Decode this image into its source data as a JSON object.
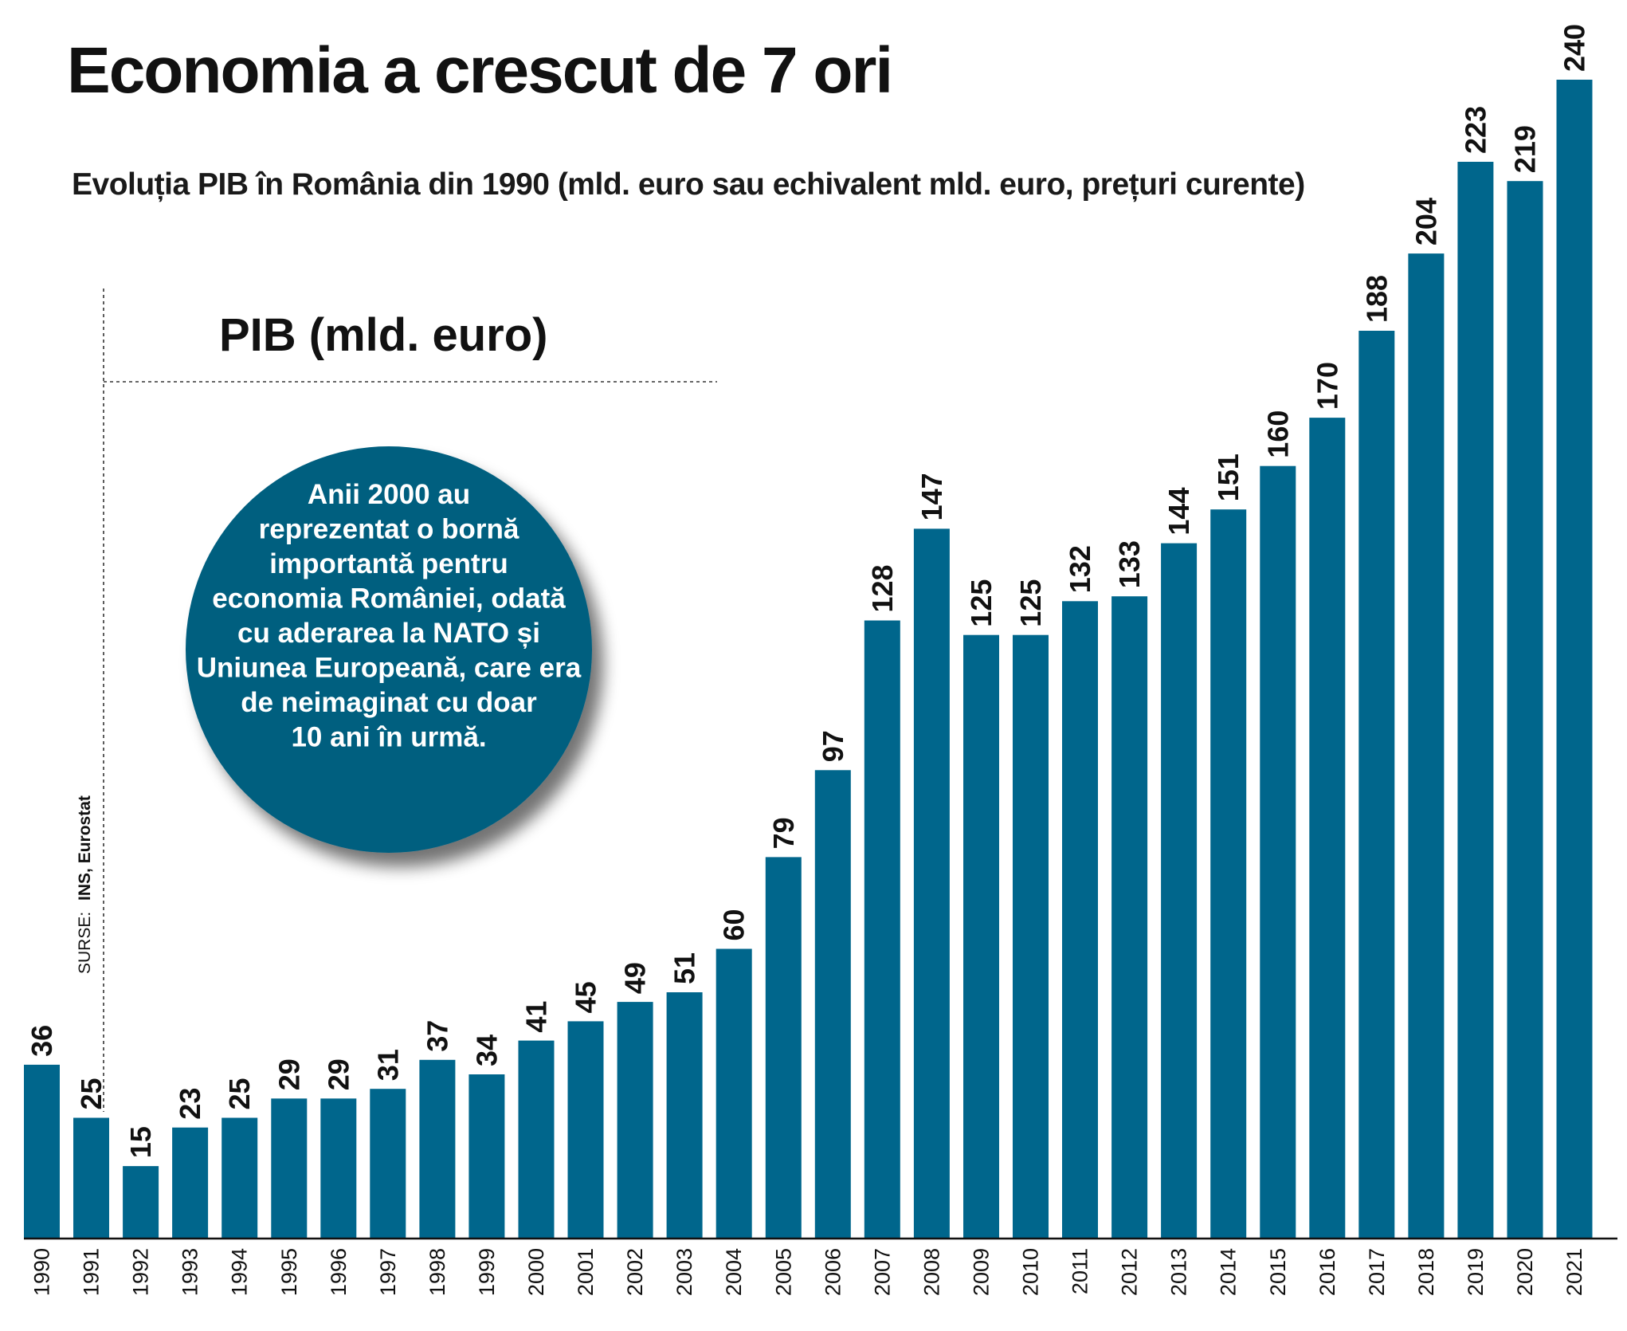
{
  "title": "Economia a crescut de 7 ori",
  "subtitle": "Evoluția PIB în România din 1990 (mld. euro sau echivalent mld. euro, prețuri curente)",
  "series_label": "PIB (mld. euro)",
  "annotation": {
    "lines": [
      "Anii 2000 au",
      "reprezentat o bornă",
      "importantă pentru",
      "economia României, odată",
      "cu aderarea la NATO și",
      "Uniunea Europeană, care era",
      "de neimaginat cu doar",
      "10 ani în urmă."
    ]
  },
  "source": {
    "prefix": "SURSE:",
    "names": "INS, Eurostat"
  },
  "colors": {
    "bar": "#00668c",
    "bubble": "#005f7f",
    "text": "#111111"
  },
  "chart_data": {
    "type": "bar",
    "categories": [
      "1990",
      "1991",
      "1992",
      "1993",
      "1994",
      "1995",
      "1996",
      "1997",
      "1998",
      "1999",
      "2000",
      "2001",
      "2002",
      "2003",
      "2004",
      "2005",
      "2006",
      "2007",
      "2008",
      "2009",
      "2010",
      "2011",
      "2012",
      "2013",
      "2014",
      "2015",
      "2016",
      "2017",
      "2018",
      "2019",
      "2020",
      "2021"
    ],
    "values": [
      36,
      25,
      15,
      23,
      25,
      29,
      29,
      31,
      37,
      34,
      41,
      45,
      49,
      51,
      60,
      79,
      97,
      128,
      147,
      125,
      125,
      132,
      133,
      144,
      151,
      160,
      170,
      188,
      204,
      223,
      219,
      240
    ],
    "title": "Economia a crescut de 7 ori",
    "ylabel": "",
    "xlabel": "",
    "ylim": [
      0,
      240
    ],
    "data_labels": true,
    "grid": false
  }
}
